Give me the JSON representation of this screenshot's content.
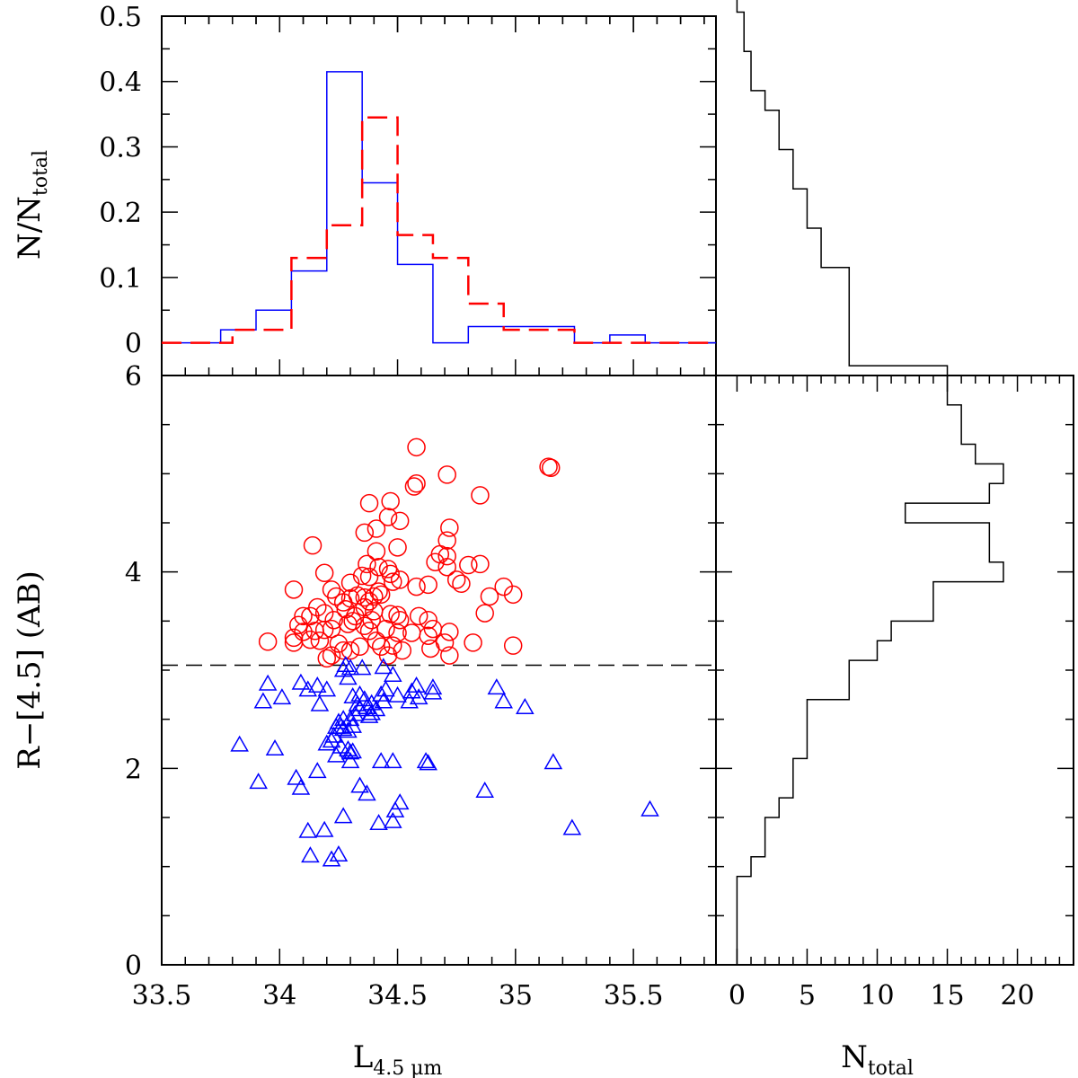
{
  "chart_data": [
    {
      "type": "histogram",
      "panel": "top",
      "ylabel": "N/N",
      "ylabel_sub": "total",
      "xlim": [
        33.5,
        35.85
      ],
      "ylim": [
        -0.05,
        0.5
      ],
      "yticks": [
        0,
        0.1,
        0.2,
        0.3,
        0.4,
        0.5
      ],
      "ytick_labels": [
        "0",
        "0.1",
        "0.2",
        "0.3",
        "0.4",
        "0.5"
      ],
      "series": [
        {
          "name": "blue",
          "color": "#0000ff",
          "style": "solid",
          "edges": [
            33.5,
            33.75,
            33.9,
            34.05,
            34.2,
            34.35,
            34.5,
            34.65,
            34.8,
            35.25,
            35.4,
            35.55,
            35.85
          ],
          "values": [
            0,
            0.02,
            0.05,
            0.11,
            0.415,
            0.245,
            0.12,
            0,
            0.025,
            0,
            0.012,
            0
          ]
        },
        {
          "name": "red",
          "color": "#ff0000",
          "style": "dashed",
          "edges": [
            33.5,
            33.8,
            34.05,
            34.2,
            34.35,
            34.5,
            34.65,
            34.8,
            34.95,
            35.25,
            35.85
          ],
          "values": [
            0,
            0.02,
            0.13,
            0.18,
            0.345,
            0.165,
            0.13,
            0.06,
            0.02,
            0
          ]
        }
      ]
    },
    {
      "type": "scatter",
      "panel": "main",
      "xlabel": "L",
      "xlabel_sub": "4.5 μm",
      "ylabel": "R−[4.5] (AB)",
      "xlim": [
        33.5,
        35.85
      ],
      "ylim": [
        0,
        6
      ],
      "xticks": [
        33.5,
        34,
        34.5,
        35,
        35.5
      ],
      "xtick_labels": [
        "33.5",
        "34",
        "34.5",
        "35",
        "35.5"
      ],
      "yticks": [
        0,
        2,
        4,
        6
      ],
      "ytick_labels": [
        "0",
        "2",
        "4",
        "6"
      ],
      "threshold_y": 3.05,
      "series": [
        {
          "name": "red",
          "marker": "circle",
          "color": "#ff0000",
          "points": [
            [
              34.58,
              5.27
            ],
            [
              34.58,
              4.9
            ],
            [
              34.57,
              4.87
            ],
            [
              34.71,
              4.99
            ],
            [
              34.85,
              4.78
            ],
            [
              35.14,
              5.07
            ],
            [
              35.15,
              5.06
            ],
            [
              34.38,
              4.7
            ],
            [
              34.47,
              4.72
            ],
            [
              34.51,
              4.52
            ],
            [
              34.46,
              4.56
            ],
            [
              34.41,
              4.44
            ],
            [
              34.36,
              4.4
            ],
            [
              34.72,
              4.45
            ],
            [
              34.71,
              4.32
            ],
            [
              34.68,
              4.18
            ],
            [
              34.71,
              4.16
            ],
            [
              34.14,
              4.27
            ],
            [
              34.5,
              4.25
            ],
            [
              34.41,
              4.21
            ],
            [
              34.66,
              4.1
            ],
            [
              34.71,
              4.05
            ],
            [
              34.8,
              4.07
            ],
            [
              34.85,
              4.08
            ],
            [
              34.37,
              4.08
            ],
            [
              34.42,
              4.05
            ],
            [
              34.46,
              4.03
            ],
            [
              34.47,
              3.98
            ],
            [
              34.48,
              3.9
            ],
            [
              34.51,
              3.92
            ],
            [
              34.3,
              3.89
            ],
            [
              34.35,
              3.96
            ],
            [
              34.38,
              3.95
            ],
            [
              34.19,
              3.99
            ],
            [
              34.22,
              3.82
            ],
            [
              34.06,
              3.82
            ],
            [
              34.24,
              3.75
            ],
            [
              34.3,
              3.73
            ],
            [
              34.33,
              3.76
            ],
            [
              34.36,
              3.74
            ],
            [
              34.38,
              3.7
            ],
            [
              34.4,
              3.75
            ],
            [
              34.43,
              3.77
            ],
            [
              34.42,
              3.8
            ],
            [
              34.58,
              3.85
            ],
            [
              34.63,
              3.87
            ],
            [
              34.75,
              3.92
            ],
            [
              34.77,
              3.88
            ],
            [
              34.89,
              3.75
            ],
            [
              34.95,
              3.85
            ],
            [
              34.99,
              3.77
            ],
            [
              34.27,
              3.69
            ],
            [
              34.28,
              3.62
            ],
            [
              34.36,
              3.64
            ],
            [
              34.4,
              3.6
            ],
            [
              34.16,
              3.64
            ],
            [
              34.1,
              3.55
            ],
            [
              34.13,
              3.55
            ],
            [
              34.19,
              3.58
            ],
            [
              34.23,
              3.51
            ],
            [
              34.32,
              3.55
            ],
            [
              34.39,
              3.51
            ],
            [
              34.47,
              3.57
            ],
            [
              34.5,
              3.56
            ],
            [
              34.51,
              3.51
            ],
            [
              34.59,
              3.55
            ],
            [
              34.63,
              3.51
            ],
            [
              34.65,
              3.42
            ],
            [
              34.72,
              3.39
            ],
            [
              34.87,
              3.58
            ],
            [
              34.08,
              3.46
            ],
            [
              34.15,
              3.4
            ],
            [
              34.19,
              3.41
            ],
            [
              34.22,
              3.42
            ],
            [
              34.29,
              3.47
            ],
            [
              34.31,
              3.5
            ],
            [
              34.36,
              3.45
            ],
            [
              34.38,
              3.4
            ],
            [
              34.45,
              3.42
            ],
            [
              34.5,
              3.38
            ],
            [
              34.56,
              3.38
            ],
            [
              34.63,
              3.35
            ],
            [
              34.7,
              3.28
            ],
            [
              34.82,
              3.28
            ],
            [
              33.95,
              3.29
            ],
            [
              34.06,
              3.28
            ],
            [
              34.06,
              3.33
            ],
            [
              34.1,
              3.39
            ],
            [
              34.13,
              3.31
            ],
            [
              34.17,
              3.3
            ],
            [
              34.25,
              3.27
            ],
            [
              34.27,
              3.2
            ],
            [
              34.3,
              3.2
            ],
            [
              34.34,
              3.24
            ],
            [
              34.41,
              3.3
            ],
            [
              34.43,
              3.24
            ],
            [
              34.48,
              3.25
            ],
            [
              34.52,
              3.2
            ],
            [
              34.64,
              3.22
            ],
            [
              34.72,
              3.15
            ],
            [
              34.99,
              3.25
            ],
            [
              34.2,
              3.12
            ],
            [
              34.22,
              3.15
            ],
            [
              34.46,
              3.15
            ]
          ]
        },
        {
          "name": "blue",
          "marker": "triangle",
          "color": "#0000ff",
          "points": [
            [
              34.28,
              3.05
            ],
            [
              34.3,
              3.02
            ],
            [
              34.35,
              3.02
            ],
            [
              34.44,
              3.03
            ],
            [
              34.48,
              2.95
            ],
            [
              34.29,
              2.92
            ],
            [
              34.27,
              3.0
            ],
            [
              34.09,
              2.87
            ],
            [
              34.16,
              2.84
            ],
            [
              34.12,
              2.8
            ],
            [
              34.2,
              2.8
            ],
            [
              33.95,
              2.86
            ],
            [
              34.01,
              2.72
            ],
            [
              33.93,
              2.68
            ],
            [
              34.31,
              2.73
            ],
            [
              34.34,
              2.75
            ],
            [
              34.36,
              2.7
            ],
            [
              34.33,
              2.65
            ],
            [
              34.37,
              2.62
            ],
            [
              34.34,
              2.6
            ],
            [
              34.39,
              2.66
            ],
            [
              34.41,
              2.6
            ],
            [
              34.44,
              2.68
            ],
            [
              34.43,
              2.75
            ],
            [
              34.45,
              2.8
            ],
            [
              34.5,
              2.74
            ],
            [
              34.55,
              2.68
            ],
            [
              34.56,
              2.78
            ],
            [
              34.58,
              2.84
            ],
            [
              34.59,
              2.72
            ],
            [
              34.65,
              2.77
            ],
            [
              34.65,
              2.82
            ],
            [
              34.17,
              2.65
            ],
            [
              34.3,
              2.5
            ],
            [
              34.32,
              2.55
            ],
            [
              34.27,
              2.5
            ],
            [
              34.25,
              2.47
            ],
            [
              34.24,
              2.42
            ],
            [
              34.26,
              2.42
            ],
            [
              34.27,
              2.4
            ],
            [
              34.29,
              2.38
            ],
            [
              34.31,
              2.43
            ],
            [
              34.23,
              2.33
            ],
            [
              34.22,
              2.28
            ],
            [
              34.26,
              2.22
            ],
            [
              34.29,
              2.19
            ],
            [
              34.31,
              2.17
            ],
            [
              34.3,
              2.16
            ],
            [
              34.3,
              2.07
            ],
            [
              34.24,
              2.13
            ],
            [
              34.43,
              2.07
            ],
            [
              34.48,
              2.07
            ],
            [
              34.62,
              2.07
            ],
            [
              34.63,
              2.05
            ],
            [
              33.83,
              2.24
            ],
            [
              33.98,
              2.2
            ],
            [
              34.2,
              2.25
            ],
            [
              34.16,
              1.97
            ],
            [
              34.07,
              1.9
            ],
            [
              34.09,
              1.8
            ],
            [
              33.91,
              1.86
            ],
            [
              34.34,
              1.82
            ],
            [
              34.37,
              1.74
            ],
            [
              34.51,
              1.65
            ],
            [
              34.49,
              1.57
            ],
            [
              34.48,
              1.46
            ],
            [
              34.42,
              1.44
            ],
            [
              34.27,
              1.51
            ],
            [
              34.19,
              1.37
            ],
            [
              34.25,
              1.12
            ],
            [
              34.22,
              1.07
            ],
            [
              34.13,
              1.11
            ],
            [
              34.12,
              1.36
            ],
            [
              34.92,
              2.82
            ],
            [
              34.95,
              2.68
            ],
            [
              35.04,
              2.62
            ],
            [
              34.87,
              1.77
            ],
            [
              35.16,
              2.06
            ],
            [
              35.24,
              1.39
            ],
            [
              35.57,
              1.58
            ],
            [
              34.38,
              2.53
            ],
            [
              34.39,
              2.56
            ]
          ]
        }
      ]
    },
    {
      "type": "histogram",
      "panel": "right",
      "orientation": "horizontal",
      "color": "#000000",
      "xlabel": "N",
      "xlabel_sub": "total",
      "xlim": [
        -1.5,
        24
      ],
      "ylim": [
        0,
        6
      ],
      "xticks": [
        0,
        5,
        10,
        15,
        20
      ],
      "xtick_labels": [
        "0",
        "5",
        "10",
        "15",
        "20"
      ],
      "bin_width": 0.2,
      "bins_y_start": 0.9,
      "values": [
        1,
        2,
        2,
        3,
        4,
        4,
        5,
        5,
        5,
        8,
        8,
        10,
        11,
        14,
        14,
        19,
        18,
        18,
        12,
        18,
        19,
        17,
        16,
        16,
        15,
        15,
        8,
        8,
        8,
        8,
        8,
        6,
        6,
        5,
        5,
        4,
        4,
        3,
        3,
        2,
        1,
        1,
        0.5,
        0.5,
        0,
        0
      ]
    }
  ]
}
